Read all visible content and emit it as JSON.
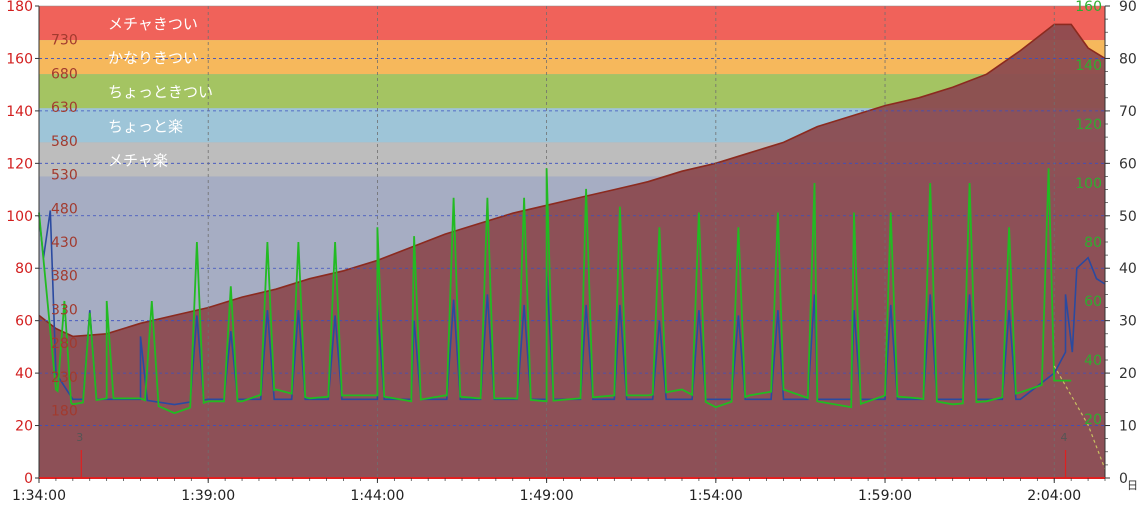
{
  "chart_data": {
    "type": "line",
    "x_axis": {
      "range": [
        "1:34:00",
        "2:05:30"
      ],
      "ticks": [
        "1:34:00",
        "1:39:00",
        "1:44:00",
        "1:49:00",
        "1:54:00",
        "1:59:00",
        "2:04:00"
      ]
    },
    "left_axis": {
      "range": [
        0,
        180
      ],
      "ticks": [
        "0",
        "20",
        "40",
        "60",
        "80",
        "100",
        "120",
        "140",
        "160",
        "180"
      ],
      "color": "#d21e1e"
    },
    "inner_axis": {
      "range": [
        80,
        780
      ],
      "ticks": [
        "180",
        "230",
        "280",
        "330",
        "380",
        "430",
        "480",
        "530",
        "580",
        "630",
        "680",
        "730"
      ],
      "color": "#a23a2e"
    },
    "right_axis_1": {
      "range": [
        0,
        160
      ],
      "ticks": [
        "20",
        "40",
        "60",
        "80",
        "100",
        "120",
        "140",
        "160"
      ],
      "color": "#2fae2f"
    },
    "right_axis_2": {
      "range": [
        0,
        90
      ],
      "ticks": [
        "0",
        "10",
        "20",
        "30",
        "40",
        "50",
        "60",
        "70",
        "80",
        "90"
      ],
      "color": "#333333"
    },
    "unit_text": "日",
    "zones": [
      {
        "label": "メチャきつい",
        "from": 167,
        "to": 180,
        "color": "#f0625a"
      },
      {
        "label": "かなりきつい",
        "from": 154,
        "to": 167,
        "color": "#f6b85c"
      },
      {
        "label": "ちょっときつい",
        "from": 141,
        "to": 154,
        "color": "#a4c462"
      },
      {
        "label": "ちょっと楽",
        "from": 128,
        "to": 141,
        "color": "#9ec5d8"
      },
      {
        "label": "メチャ楽",
        "from": 115,
        "to": 128,
        "color": "#bdbdbd"
      }
    ],
    "markers": [
      {
        "label": "3",
        "time": "1:35:15"
      },
      {
        "label": "4",
        "time": "2:04:20"
      }
    ],
    "grid": true,
    "series": [
      {
        "axis": "left",
        "color": "#8b2a1f",
        "fill": "#8b4a50",
        "points": [
          [
            "1:34:00",
            62
          ],
          [
            "1:34:30",
            57
          ],
          [
            "1:35:00",
            54
          ],
          [
            "1:36:00",
            55
          ],
          [
            "1:37:00",
            59
          ],
          [
            "1:38:00",
            62
          ],
          [
            "1:39:00",
            65
          ],
          [
            "1:40:00",
            69
          ],
          [
            "1:41:00",
            72
          ],
          [
            "1:42:00",
            76
          ],
          [
            "1:43:00",
            79
          ],
          [
            "1:44:00",
            83
          ],
          [
            "1:45:00",
            88
          ],
          [
            "1:46:00",
            93
          ],
          [
            "1:47:00",
            97
          ],
          [
            "1:48:00",
            101
          ],
          [
            "1:49:00",
            104
          ],
          [
            "1:50:00",
            107
          ],
          [
            "1:51:00",
            110
          ],
          [
            "1:52:00",
            113
          ],
          [
            "1:53:00",
            117
          ],
          [
            "1:54:00",
            120
          ],
          [
            "1:55:00",
            124
          ],
          [
            "1:56:00",
            128
          ],
          [
            "1:57:00",
            134
          ],
          [
            "1:58:00",
            138
          ],
          [
            "1:59:00",
            142
          ],
          [
            "2:00:00",
            145
          ],
          [
            "2:01:00",
            149
          ],
          [
            "2:02:00",
            154
          ],
          [
            "2:03:00",
            163
          ],
          [
            "2:03:30",
            168
          ],
          [
            "2:04:00",
            173
          ],
          [
            "2:04:30",
            173
          ],
          [
            "2:05:00",
            164
          ],
          [
            "2:05:30",
            160
          ]
        ]
      },
      {
        "axis": "right_1",
        "color": "#22bb22",
        "base_points": [
          [
            "1:34:00",
            90
          ],
          [
            "1:34:30",
            30
          ],
          [
            "1:35:00",
            25
          ],
          [
            "1:36:00",
            27
          ],
          [
            "1:37:00",
            27
          ],
          [
            "1:38:00",
            22
          ],
          [
            "1:39:00",
            26
          ],
          [
            "1:40:00",
            26
          ],
          [
            "1:41:00",
            30
          ],
          [
            "1:42:00",
            27
          ],
          [
            "1:43:00",
            28
          ],
          [
            "1:44:00",
            28
          ],
          [
            "1:45:00",
            26
          ],
          [
            "1:46:00",
            28
          ],
          [
            "1:47:00",
            27
          ],
          [
            "1:48:00",
            27
          ],
          [
            "1:49:00",
            26
          ],
          [
            "1:50:00",
            27
          ],
          [
            "1:51:00",
            28
          ],
          [
            "1:52:00",
            28
          ],
          [
            "1:53:00",
            30
          ],
          [
            "1:54:00",
            24
          ],
          [
            "1:55:00",
            28
          ],
          [
            "1:56:00",
            30
          ],
          [
            "1:57:00",
            26
          ],
          [
            "1:58:00",
            24
          ],
          [
            "1:59:00",
            28
          ],
          [
            "2:00:00",
            27
          ],
          [
            "2:01:00",
            25
          ],
          [
            "2:02:00",
            26
          ],
          [
            "2:03:00",
            29
          ],
          [
            "2:04:00",
            33
          ],
          [
            "2:04:30",
            33
          ]
        ],
        "peaks": [
          [
            "1:34:45",
            60
          ],
          [
            "1:35:30",
            56
          ],
          [
            "1:36:00",
            60
          ],
          [
            "1:37:20",
            60
          ],
          [
            "1:38:40",
            80
          ],
          [
            "1:39:40",
            65
          ],
          [
            "1:40:45",
            80
          ],
          [
            "1:41:40",
            80
          ],
          [
            "1:42:45",
            80
          ],
          [
            "1:44:00",
            85
          ],
          [
            "1:45:05",
            82
          ],
          [
            "1:46:15",
            95
          ],
          [
            "1:47:15",
            95
          ],
          [
            "1:48:20",
            95
          ],
          [
            "1:49:00",
            105
          ],
          [
            "1:50:10",
            98
          ],
          [
            "1:51:10",
            92
          ],
          [
            "1:52:20",
            85
          ],
          [
            "1:53:30",
            90
          ],
          [
            "1:54:40",
            85
          ],
          [
            "1:55:50",
            90
          ],
          [
            "1:56:55",
            100
          ],
          [
            "1:58:05",
            90
          ],
          [
            "1:59:10",
            90
          ],
          [
            "2:00:20",
            100
          ],
          [
            "2:01:30",
            100
          ],
          [
            "2:02:40",
            85
          ],
          [
            "2:03:50",
            105
          ]
        ]
      },
      {
        "axis": "right_2",
        "color": "#2a4aa0",
        "base_points": [
          [
            "1:34:00",
            50
          ],
          [
            "1:34:30",
            20
          ],
          [
            "1:35:00",
            15
          ],
          [
            "1:36:00",
            15
          ],
          [
            "1:37:00",
            15
          ],
          [
            "1:38:00",
            14
          ],
          [
            "1:39:00",
            15
          ],
          [
            "1:40:00",
            15
          ],
          [
            "1:41:00",
            15
          ],
          [
            "1:42:00",
            15
          ],
          [
            "1:43:00",
            15
          ],
          [
            "1:44:00",
            15
          ],
          [
            "1:45:00",
            15
          ],
          [
            "1:46:00",
            15
          ],
          [
            "1:47:00",
            15
          ],
          [
            "1:48:00",
            15
          ],
          [
            "1:49:00",
            15
          ],
          [
            "1:50:00",
            15
          ],
          [
            "1:51:00",
            15
          ],
          [
            "1:52:00",
            15
          ],
          [
            "1:53:00",
            15
          ],
          [
            "1:54:00",
            15
          ],
          [
            "1:55:00",
            15
          ],
          [
            "1:56:00",
            15
          ],
          [
            "1:57:00",
            15
          ],
          [
            "1:58:00",
            15
          ],
          [
            "1:59:00",
            15
          ],
          [
            "2:00:00",
            15
          ],
          [
            "2:01:00",
            15
          ],
          [
            "2:02:00",
            15
          ],
          [
            "2:03:00",
            15
          ],
          [
            "2:04:00",
            20
          ],
          [
            "2:04:20",
            24
          ]
        ],
        "peaks": [
          [
            "1:34:20",
            51
          ],
          [
            "1:35:30",
            32
          ],
          [
            "1:37:00",
            27
          ],
          [
            "1:38:40",
            31
          ],
          [
            "1:39:40",
            28
          ],
          [
            "1:40:45",
            32
          ],
          [
            "1:41:40",
            32
          ],
          [
            "1:42:45",
            31
          ],
          [
            "1:44:00",
            33
          ],
          [
            "1:45:05",
            30
          ],
          [
            "1:46:15",
            34
          ],
          [
            "1:47:15",
            35
          ],
          [
            "1:48:20",
            33
          ],
          [
            "1:49:00",
            40
          ],
          [
            "1:50:10",
            33
          ],
          [
            "1:51:10",
            33
          ],
          [
            "1:52:20",
            30
          ],
          [
            "1:53:30",
            32
          ],
          [
            "1:54:40",
            31
          ],
          [
            "1:55:50",
            32
          ],
          [
            "1:56:55",
            35
          ],
          [
            "1:58:05",
            32
          ],
          [
            "1:59:10",
            33
          ],
          [
            "2:00:20",
            35
          ],
          [
            "2:01:30",
            35
          ],
          [
            "2:02:40",
            32
          ],
          [
            "2:04:20",
            35
          ]
        ],
        "tail": [
          [
            "2:04:40",
            40
          ],
          [
            "2:05:00",
            42
          ],
          [
            "2:05:15",
            38
          ],
          [
            "2:05:30",
            37
          ]
        ]
      }
    ],
    "dashed_series": {
      "axis": "right_1",
      "color": "#c8c060",
      "points": [
        [
          "2:04:00",
          38
        ],
        [
          "2:05:00",
          18
        ],
        [
          "2:05:30",
          3
        ]
      ]
    }
  }
}
